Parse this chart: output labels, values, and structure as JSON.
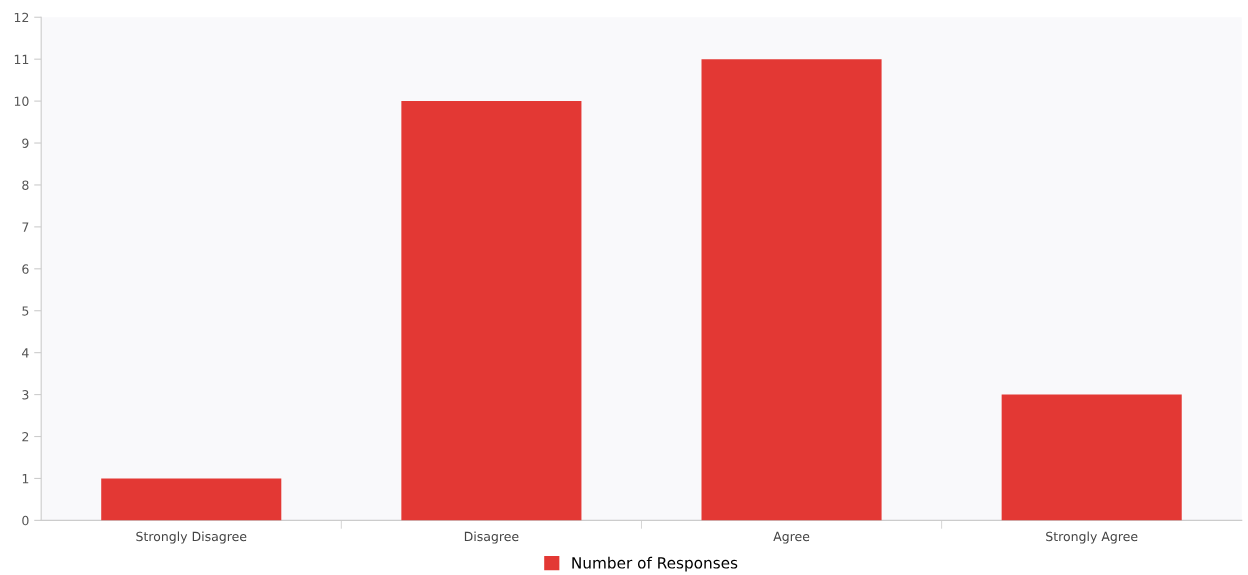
{
  "chart_data": {
    "type": "bar",
    "categories": [
      "Strongly Disagree",
      "Disagree",
      "Agree",
      "Strongly Agree"
    ],
    "series": [
      {
        "name": "Number of Responses",
        "color": "#e33834",
        "values": [
          1,
          10,
          11,
          3
        ]
      }
    ],
    "ylim": [
      0,
      12
    ],
    "yticks": [
      0,
      1,
      2,
      3,
      4,
      5,
      6,
      7,
      8,
      9,
      10,
      11,
      12
    ],
    "grid": false,
    "legend": "bottom"
  }
}
